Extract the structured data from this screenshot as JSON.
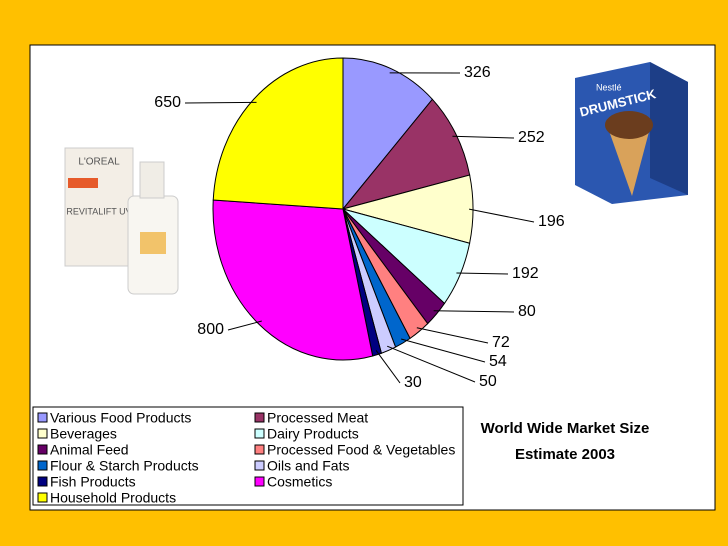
{
  "chart_data": {
    "type": "pie",
    "title": "World Wide Market Size Estimate 2003",
    "categories": [
      "Various Food Products",
      "Processed Meat",
      "Beverages",
      "Dairy Products",
      "Animal Feed",
      "Processed Food & Vegetables",
      "Flour & Starch Products",
      "Oils and Fats",
      "Fish Products",
      "Cosmetics",
      "Household Products"
    ],
    "values": [
      326,
      252,
      196,
      192,
      80,
      72,
      54,
      50,
      30,
      800,
      650
    ],
    "colors": [
      "#9999ff",
      "#993366",
      "#ffffcc",
      "#ccffff",
      "#660066",
      "#ff8080",
      "#0066cc",
      "#ccccff",
      "#000080",
      "#ff00ff",
      "#ffff00"
    ],
    "legend": "bottom-left"
  },
  "images": {
    "left": [
      "L'OREAL",
      "REVITALIFT UV"
    ],
    "right": [
      "Nestlé",
      "DRUMSTICK"
    ]
  }
}
